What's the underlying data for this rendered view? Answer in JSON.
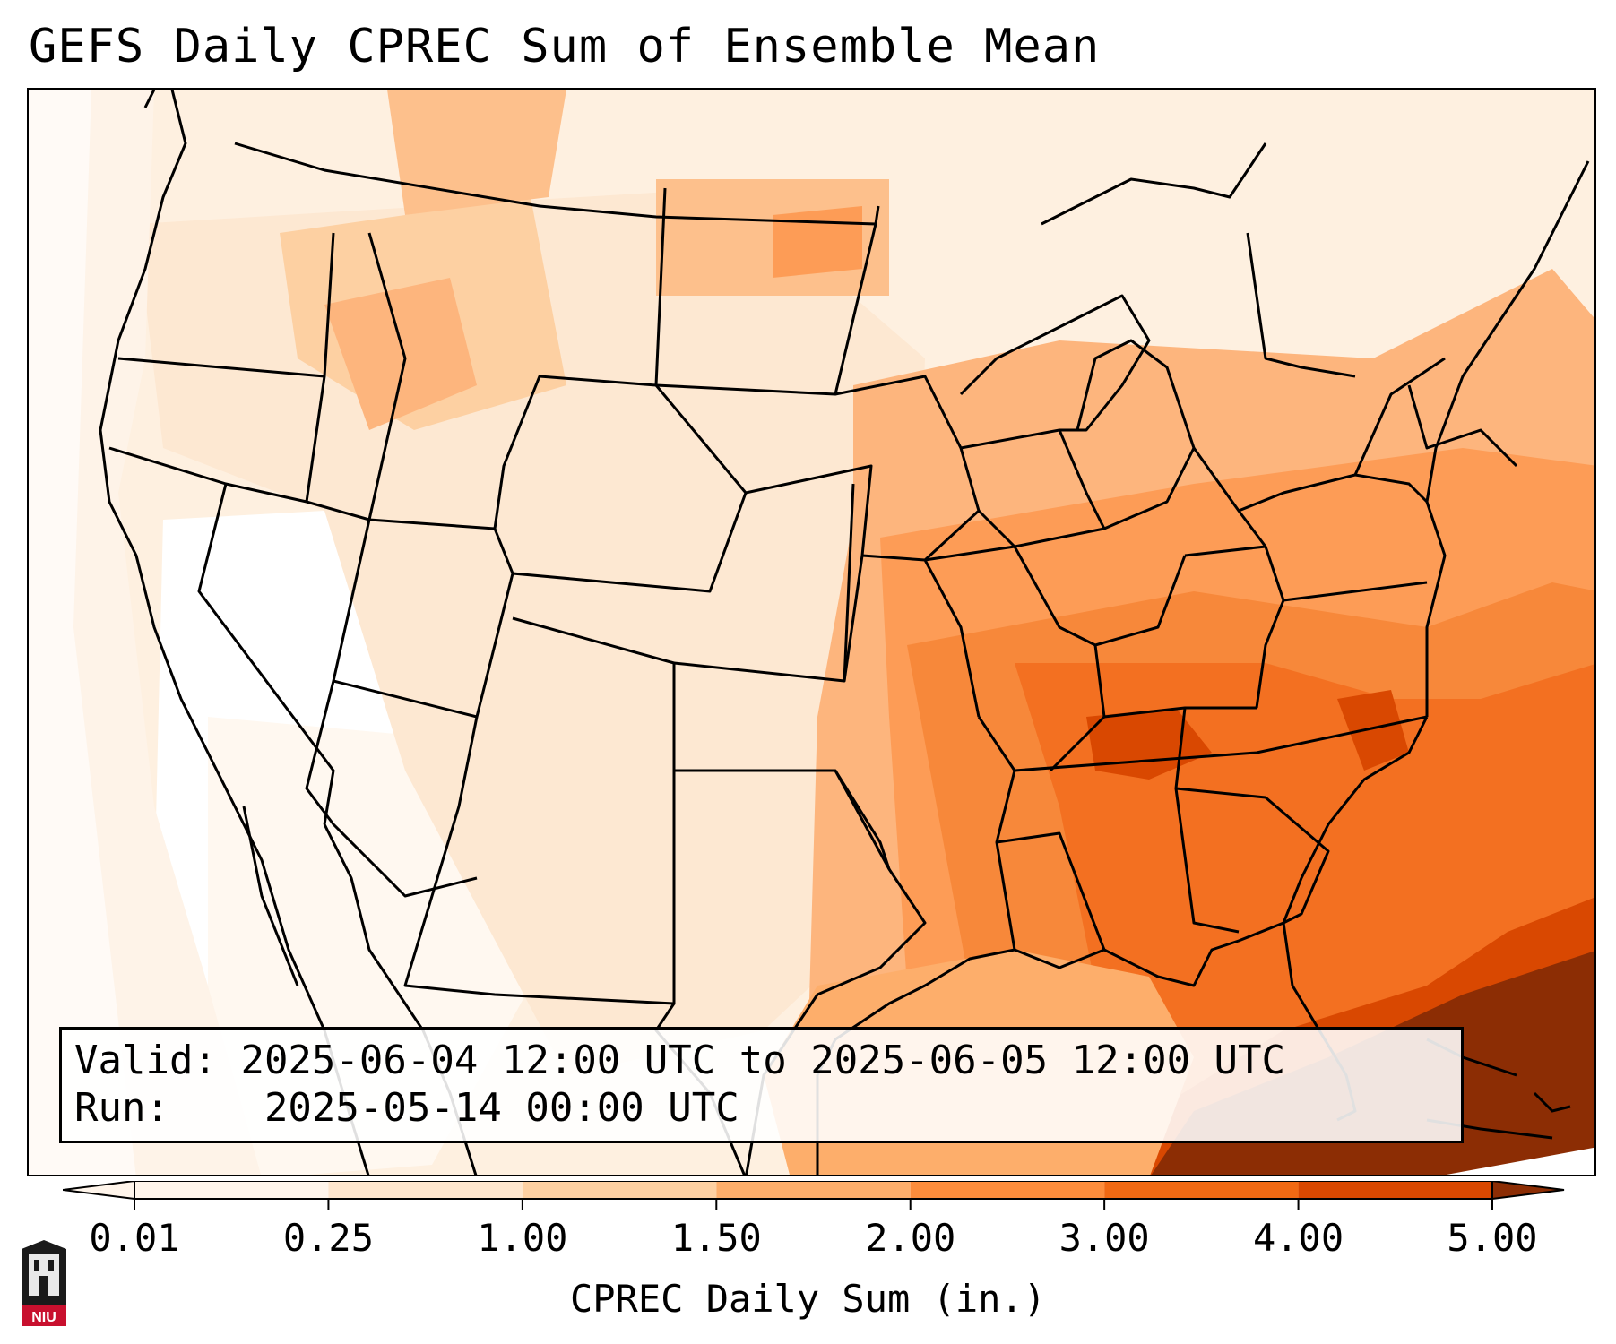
{
  "title": "GEFS Daily CPREC Sum of Ensemble Mean",
  "info": {
    "valid_label": "Valid:",
    "valid_value": "2025-06-04 12:00 UTC to 2025-06-05 12:00 UTC",
    "run_label": "Run:",
    "run_value": "2025-05-14 00:00 UTC"
  },
  "colorbar": {
    "label": "CPREC Daily Sum (in.)",
    "ticks": [
      "0.01",
      "0.25",
      "1.00",
      "1.50",
      "2.00",
      "3.00",
      "4.00",
      "5.00"
    ],
    "colors": [
      "#fff5eb",
      "#fee6ce",
      "#fdd0a2",
      "#fdae6b",
      "#fd8d3c",
      "#f16913",
      "#d94801",
      "#8c2d04"
    ],
    "extend": "both"
  },
  "colors": {
    "frame": "#000000",
    "ocean_background": "#ffffff"
  },
  "logo": {
    "icon": "university-tower-icon",
    "text": "NIU",
    "color": "#c8102e"
  }
}
